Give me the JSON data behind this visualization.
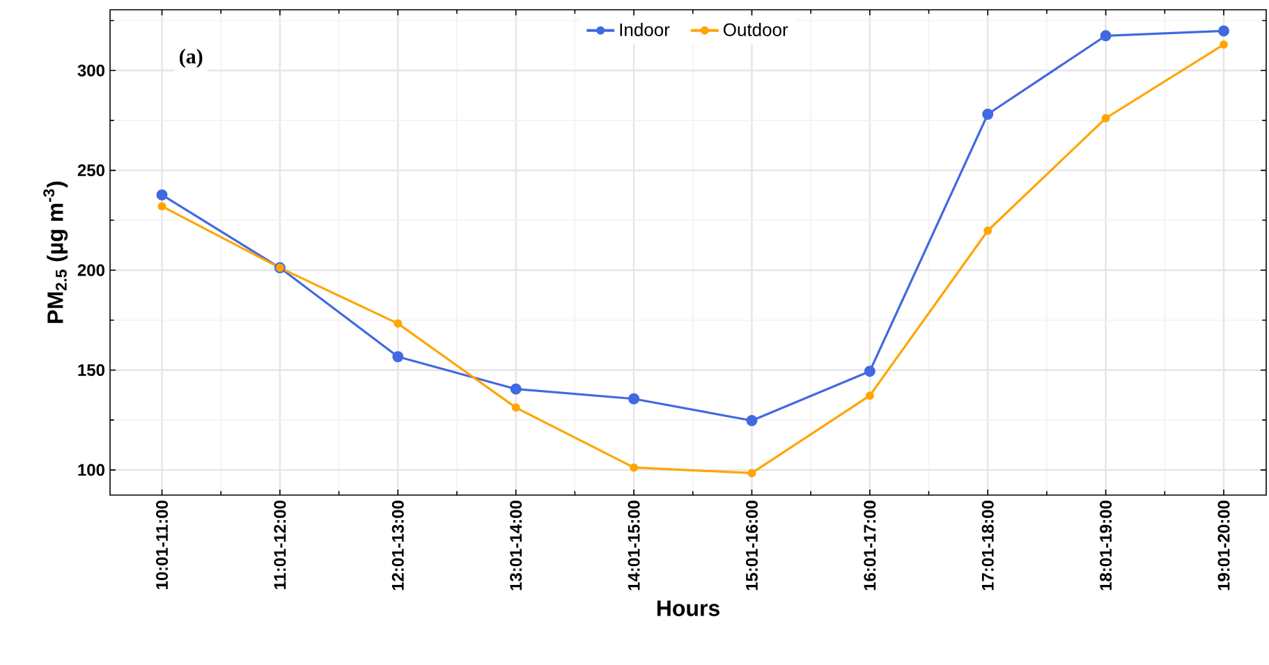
{
  "chart_data": {
    "type": "line",
    "xlabel": "Hours",
    "ylabel": "PM$_{2.5}$ (µg m$^{-3}$)",
    "annotations": [
      "(a)"
    ],
    "categories": [
      "10:01-11:00",
      "11:01-12:00",
      "12:01-13:00",
      "13:01-14:00",
      "14:01-15:00",
      "15:01-16:00",
      "16:01-17:00",
      "17:01-18:00",
      "18:01-19:00",
      "19:01-20:00"
    ],
    "series": [
      {
        "name": "Indoor",
        "color": "#4169e1",
        "values": [
          237.7,
          201.2,
          156.7,
          140.5,
          135.6,
          124.7,
          149.4,
          278.1,
          317.4,
          319.8
        ]
      },
      {
        "name": "Outdoor",
        "color": "#ffa500",
        "values": [
          232,
          201.2,
          173.3,
          131.2,
          101.2,
          98.4,
          137.2,
          219.8,
          276.1,
          313
        ]
      }
    ],
    "ylim": [
      87.4,
      330.4
    ],
    "yticks": [
      100,
      150,
      200,
      250,
      300
    ],
    "grid": true,
    "legend": "top",
    "marker": "circle",
    "line_style": "solid"
  }
}
